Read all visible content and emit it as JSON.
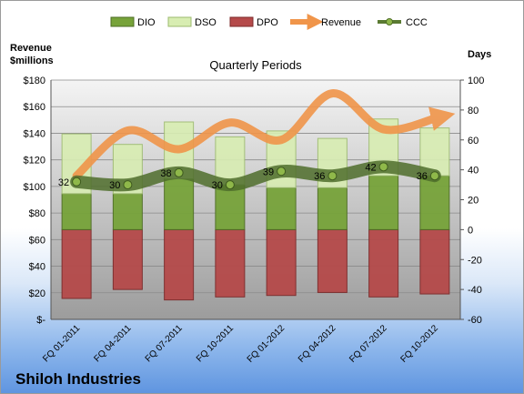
{
  "chart_data": {
    "type": "bar",
    "title": "Quarterly Periods",
    "company": "Shiloh Industries",
    "left_axis_label_line1": "Revenue",
    "left_axis_label_line2": "$millions",
    "right_axis_label": "Days",
    "categories": [
      "FQ 01-2011",
      "FQ 04-2011",
      "FQ 07-2011",
      "FQ 10-2011",
      "FQ 01-2012",
      "FQ 04-2012",
      "FQ 07-2012",
      "FQ 10-2012"
    ],
    "left_ticks": [
      "$-",
      "$20",
      "$40",
      "$60",
      "$80",
      "$100",
      "$120",
      "$140",
      "$160",
      "$180"
    ],
    "left_ylim": [
      0,
      180
    ],
    "right_ticks": [
      "-60",
      "-40",
      "-20",
      "0",
      "20",
      "40",
      "60",
      "80",
      "100"
    ],
    "right_ylim": [
      -60,
      100
    ],
    "grid": true,
    "legend_position": "top",
    "series": [
      {
        "name": "DIO",
        "axis": "days",
        "color": "#77a33a",
        "values": [
          24,
          24,
          34,
          30,
          28,
          28,
          36,
          36
        ]
      },
      {
        "name": "DSO",
        "axis": "days",
        "color": "#d8edb2",
        "values": [
          40,
          33,
          38,
          32,
          38,
          33,
          38,
          32
        ]
      },
      {
        "name": "DPO",
        "axis": "days",
        "color": "#b54a4a",
        "values": [
          -46,
          -40,
          -47,
          -45,
          -44,
          -42,
          -45,
          -43
        ]
      },
      {
        "name": "Revenue",
        "axis": "revenue",
        "color": "#f0954a",
        "values": [
          108,
          142,
          128,
          148,
          135,
          170,
          143,
          152
        ]
      },
      {
        "name": "CCC",
        "axis": "days",
        "color": "#5a7a32",
        "values": [
          32,
          30,
          38,
          30,
          39,
          36,
          42,
          36
        ]
      }
    ],
    "ccc_labels": [
      "32",
      "30",
      "38",
      "30",
      "39",
      "36",
      "42",
      "36"
    ]
  }
}
